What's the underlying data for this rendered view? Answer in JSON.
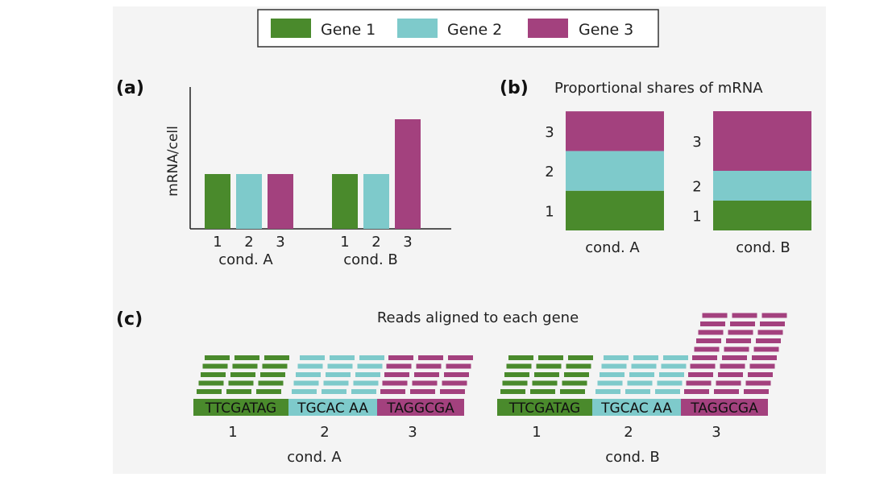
{
  "legend": {
    "items": [
      {
        "label": "Gene 1",
        "color": "#4a8a2c"
      },
      {
        "label": "Gene 2",
        "color": "#7ecacb"
      },
      {
        "label": "Gene 3",
        "color": "#a3417e"
      }
    ]
  },
  "panel_a": {
    "label": "(a)",
    "ylabel": "mRNA/cell",
    "conditions": [
      "cond. A",
      "cond. B"
    ],
    "gene_ticks": [
      "1",
      "2",
      "3"
    ]
  },
  "panel_b": {
    "label": "(b)",
    "title": "Proportional shares of mRNA",
    "conditions": [
      "cond. A",
      "cond. B"
    ],
    "gene_ticks": [
      "1",
      "2",
      "3"
    ]
  },
  "panel_c": {
    "label": "(c)",
    "title": "Reads aligned to each gene",
    "sequences": [
      "TTCGATAG",
      "TGCAC AA",
      "TAGGCGA"
    ],
    "gene_ticks": [
      "1",
      "2",
      "3"
    ],
    "conditions": [
      "cond. A",
      "cond. B"
    ]
  },
  "chart_data": [
    {
      "type": "bar",
      "ylabel": "mRNA/cell",
      "categories": [
        "cond. A",
        "cond. B"
      ],
      "series": [
        {
          "name": "Gene 1",
          "values": [
            1,
            1
          ]
        },
        {
          "name": "Gene 2",
          "values": [
            1,
            1
          ]
        },
        {
          "name": "Gene 3",
          "values": [
            1,
            2
          ]
        }
      ]
    },
    {
      "type": "bar",
      "stacked": true,
      "title": "Proportional shares of mRNA",
      "categories": [
        "cond. A",
        "cond. B"
      ],
      "series": [
        {
          "name": "Gene 1",
          "values": [
            0.333,
            0.25
          ]
        },
        {
          "name": "Gene 2",
          "values": [
            0.333,
            0.25
          ]
        },
        {
          "name": "Gene 3",
          "values": [
            0.333,
            0.5
          ]
        }
      ]
    }
  ],
  "reads": {
    "cond_a": [
      5,
      5,
      5
    ],
    "cond_b": [
      5,
      5,
      10
    ]
  }
}
